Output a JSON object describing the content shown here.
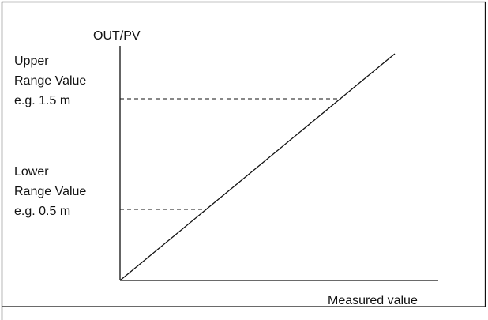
{
  "axes": {
    "y_label": "OUT/PV",
    "x_label": "Measured value"
  },
  "upper_range": {
    "lines": [
      "Upper",
      "Range Value",
      "e.g. 1.5 m"
    ]
  },
  "lower_range": {
    "lines": [
      "Lower",
      "Range Value",
      "e.g. 0.5 m"
    ]
  }
}
